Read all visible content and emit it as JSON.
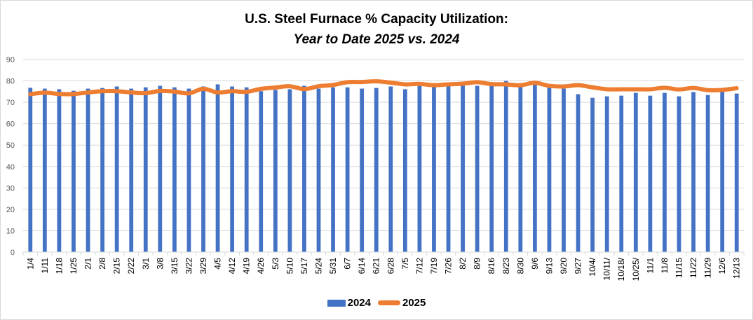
{
  "chart_data": {
    "type": "bar",
    "title": "U.S. Steel Furnace % Capacity Utilization:",
    "subtitle": "Year to Date 2025 vs. 2024",
    "xlabel": "",
    "ylabel": "",
    "ylim": [
      0,
      90
    ],
    "yticks": [
      0,
      10,
      20,
      30,
      40,
      50,
      60,
      70,
      80,
      90
    ],
    "grid": true,
    "legend_position": "bottom-center",
    "categories": [
      "1/4",
      "1/11",
      "1/18",
      "1/25",
      "2/1",
      "2/8",
      "2/15",
      "2/22",
      "3/1",
      "3/8",
      "3/15",
      "3/22",
      "3/29",
      "4/5",
      "4/12",
      "4/19",
      "4/26",
      "5/3",
      "5/10",
      "5/17",
      "5/24",
      "5/31",
      "6/7",
      "6/14",
      "6/21",
      "6/28",
      "7/5",
      "7/12",
      "7/19",
      "7/26",
      "8/2",
      "8/9",
      "8/16",
      "8/23",
      "8/30",
      "9/6",
      "9/13",
      "9/20",
      "9/27",
      "10/4/",
      "10/11/",
      "10/18/",
      "10/25/",
      "11/1",
      "11/8",
      "11/15",
      "11/22",
      "11/29",
      "12/6",
      "12/13"
    ],
    "series": [
      {
        "name": "2024",
        "type": "bar",
        "color": "#4472c4",
        "values": [
          76.8,
          76.4,
          76.1,
          75.4,
          76.4,
          76.7,
          77.4,
          76.4,
          77.0,
          77.7,
          77.0,
          76.4,
          77.4,
          78.4,
          77.4,
          77.0,
          75.2,
          75.8,
          76.1,
          77.7,
          76.4,
          77.0,
          77.0,
          76.4,
          76.7,
          77.4,
          76.1,
          78.4,
          77.4,
          77.7,
          78.0,
          77.7,
          78.0,
          80.0,
          78.4,
          78.7,
          77.4,
          76.4,
          73.8,
          72.1,
          72.8,
          73.1,
          74.4,
          73.1,
          74.4,
          72.8,
          74.8,
          73.4,
          75.4,
          74.1
        ]
      },
      {
        "name": "2025",
        "type": "line",
        "color": "#ed7d31",
        "values": [
          73.8,
          74.5,
          73.9,
          73.9,
          74.6,
          75.2,
          75.2,
          74.6,
          74.3,
          75.3,
          75.0,
          74.2,
          76.3,
          74.6,
          75.2,
          74.9,
          76.3,
          76.9,
          77.5,
          76.2,
          77.5,
          78.1,
          79.4,
          79.5,
          79.8,
          79.2,
          78.4,
          78.6,
          78.0,
          78.4,
          78.7,
          79.4,
          78.5,
          78.4,
          78.0,
          79.1,
          77.7,
          77.4,
          78.0,
          77.0,
          76.1,
          76.1,
          76.1,
          76.1,
          76.8,
          76.0,
          76.7,
          75.7,
          75.8,
          76.6
        ]
      }
    ]
  }
}
